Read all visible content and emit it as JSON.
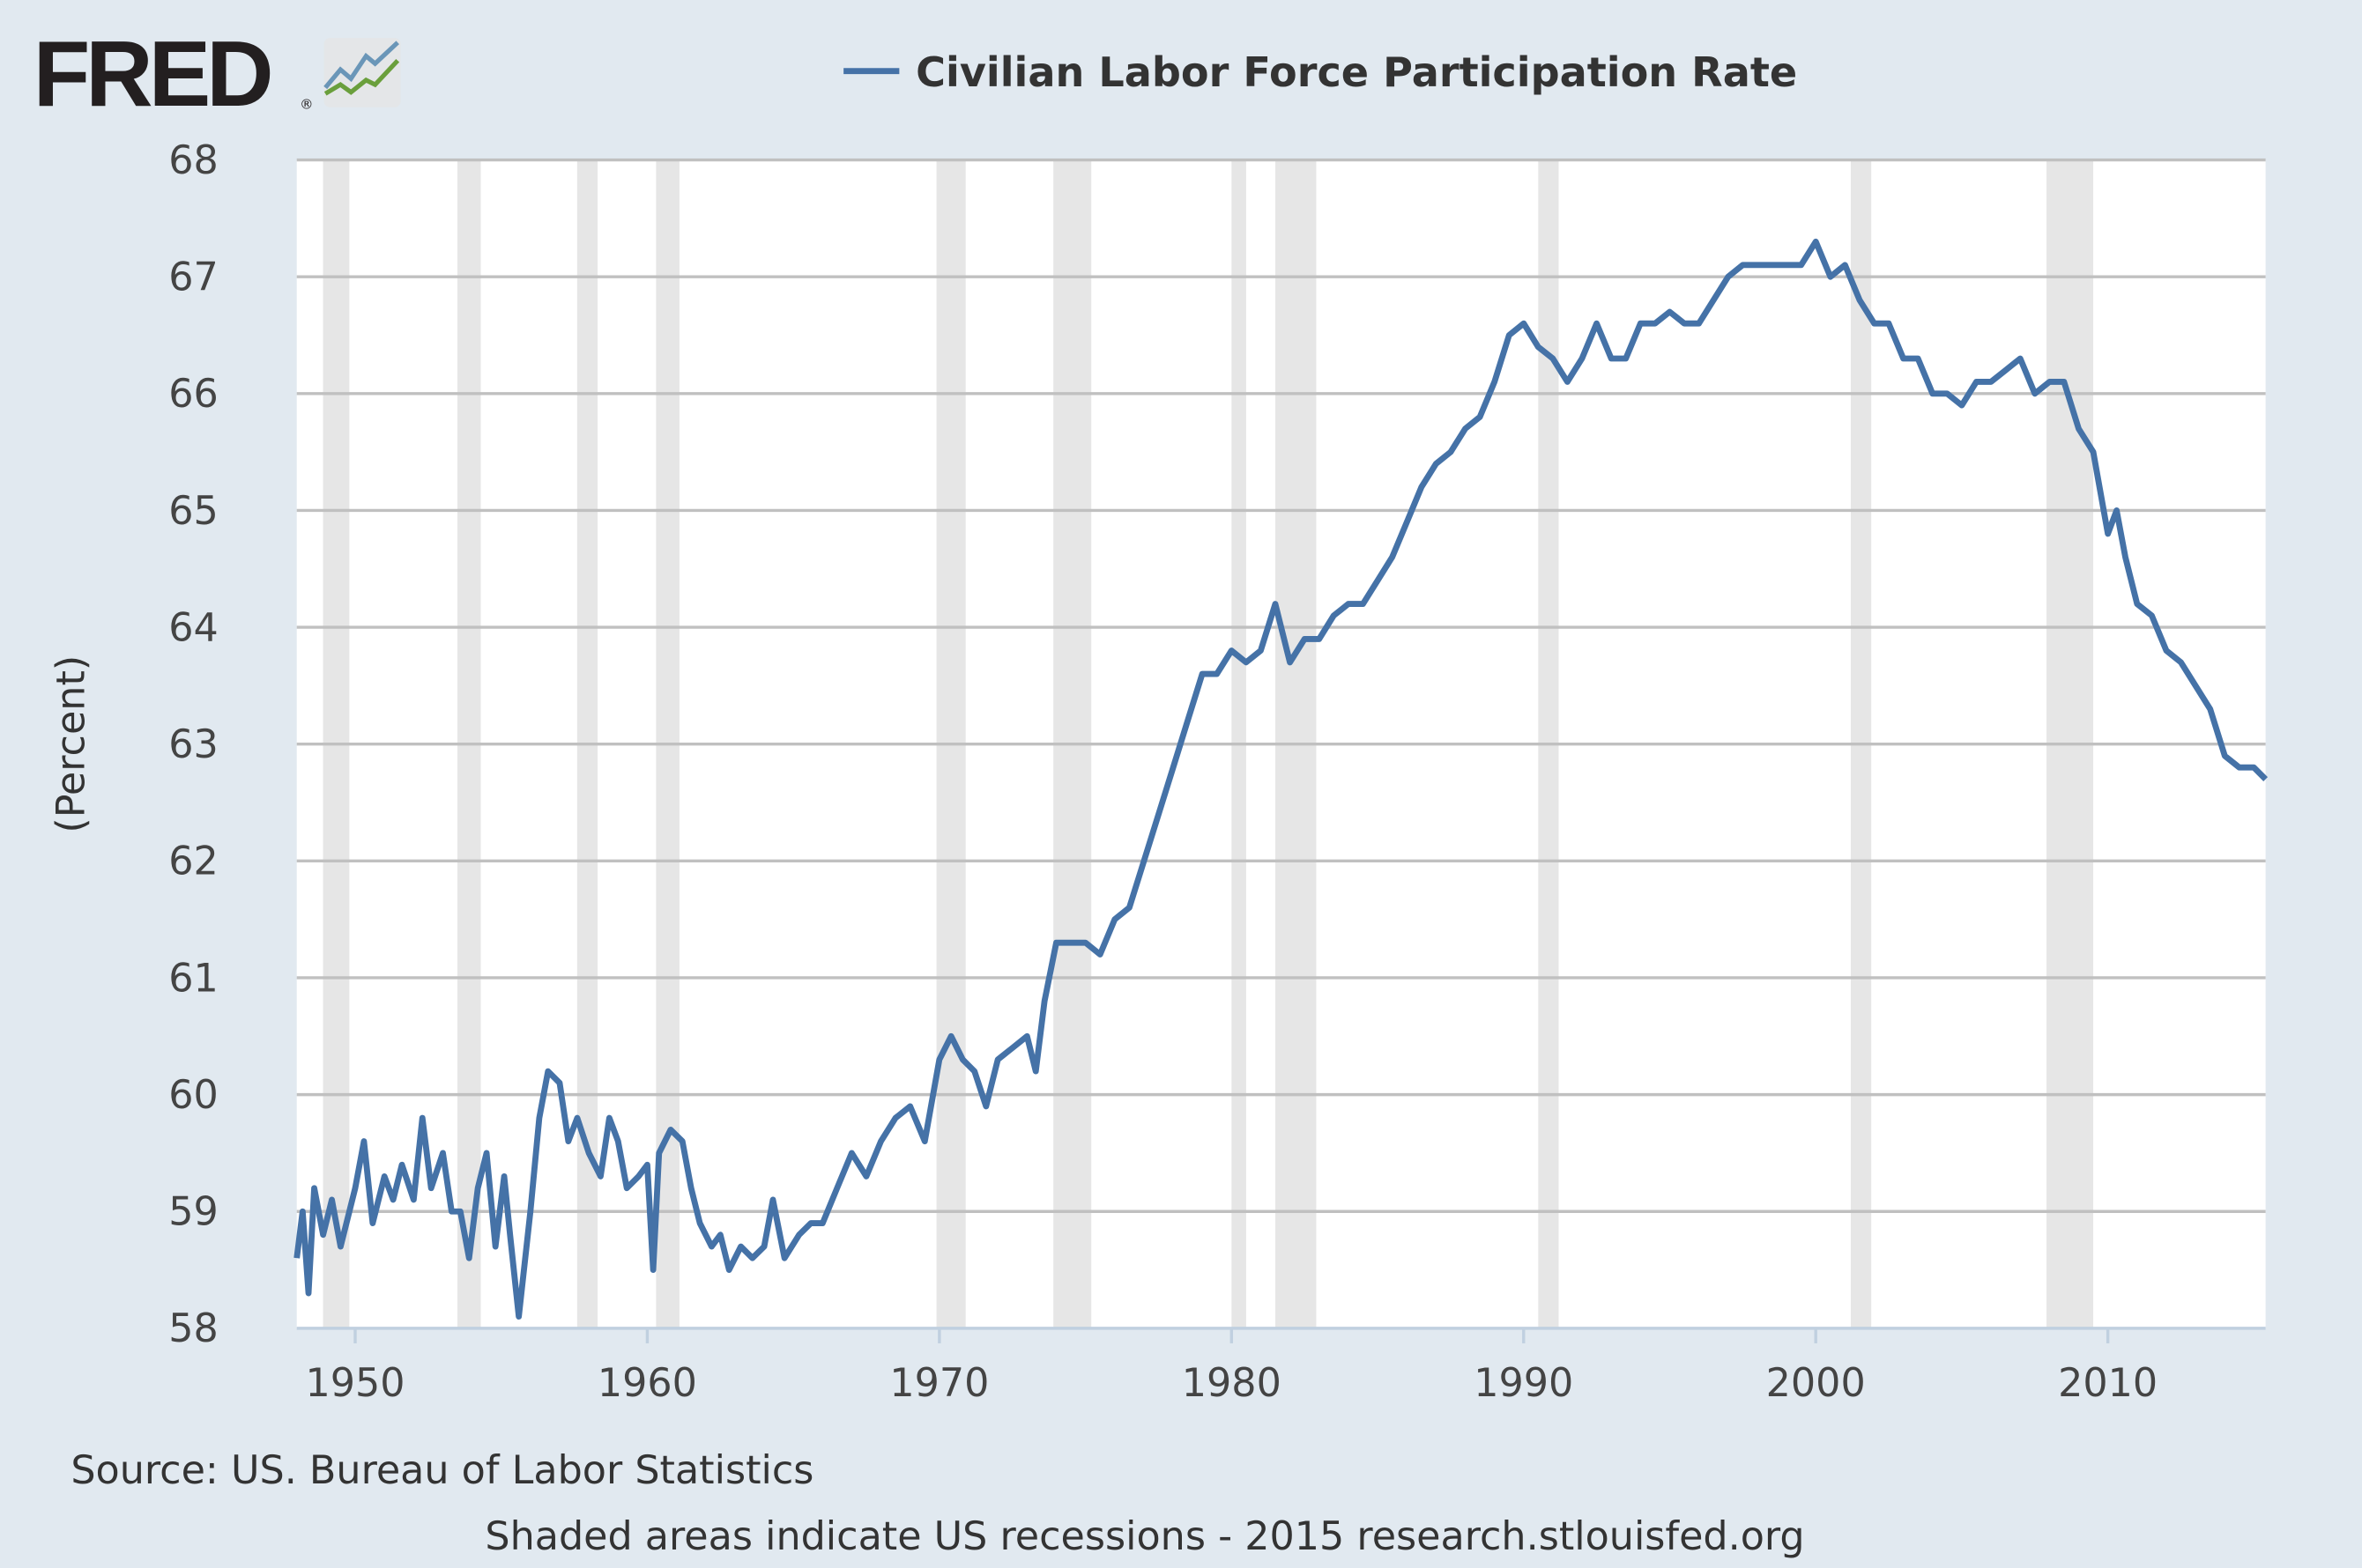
{
  "logo": {
    "text": "FRED",
    "registered": "®"
  },
  "colors": {
    "background": "#e1e9f0",
    "plot": "#ffffff",
    "series": "#4572a7",
    "grid": "#c0c0c0",
    "recession": "#e6e6e6",
    "axis": "#c0d0e0"
  },
  "chart_data": {
    "type": "line",
    "title": "Civilian Labor Force Participation Rate",
    "legend": [
      "Civilian Labor Force Participation Rate"
    ],
    "legend_position": "top-center",
    "xlabel": "",
    "ylabel": "(Percent)",
    "xlim": [
      1948.0,
      2015.4
    ],
    "ylim": [
      58,
      68
    ],
    "grid": true,
    "yticks": [
      "58",
      "59",
      "60",
      "61",
      "62",
      "63",
      "64",
      "65",
      "66",
      "67",
      "68"
    ],
    "xticks": [
      "1950",
      "1960",
      "1970",
      "1980",
      "1990",
      "2000",
      "2010"
    ],
    "recessions": [
      [
        1948.9,
        1949.8
      ],
      [
        1953.5,
        1954.3
      ],
      [
        1957.6,
        1958.3
      ],
      [
        1960.3,
        1961.1
      ],
      [
        1969.9,
        1970.9
      ],
      [
        1973.9,
        1975.2
      ],
      [
        1980.0,
        1980.5
      ],
      [
        1981.5,
        1982.9
      ],
      [
        1990.5,
        1991.2
      ],
      [
        2001.2,
        2001.9
      ],
      [
        2007.9,
        2009.5
      ]
    ],
    "series": [
      {
        "name": "Civilian Labor Force Participation Rate",
        "points": [
          [
            1948.0,
            58.6
          ],
          [
            1948.2,
            59.0
          ],
          [
            1948.4,
            58.3
          ],
          [
            1948.6,
            59.2
          ],
          [
            1948.9,
            58.8
          ],
          [
            1949.2,
            59.1
          ],
          [
            1949.5,
            58.7
          ],
          [
            1950.0,
            59.2
          ],
          [
            1950.3,
            59.6
          ],
          [
            1950.6,
            58.9
          ],
          [
            1951.0,
            59.3
          ],
          [
            1951.3,
            59.1
          ],
          [
            1951.6,
            59.4
          ],
          [
            1952.0,
            59.1
          ],
          [
            1952.3,
            59.8
          ],
          [
            1952.6,
            59.2
          ],
          [
            1953.0,
            59.5
          ],
          [
            1953.3,
            59.0
          ],
          [
            1953.6,
            59.0
          ],
          [
            1953.9,
            58.6
          ],
          [
            1954.2,
            59.2
          ],
          [
            1954.5,
            59.5
          ],
          [
            1954.8,
            58.7
          ],
          [
            1955.1,
            59.3
          ],
          [
            1955.3,
            58.8
          ],
          [
            1955.6,
            58.1
          ],
          [
            1956.0,
            59.0
          ],
          [
            1956.3,
            59.8
          ],
          [
            1956.6,
            60.2
          ],
          [
            1957.0,
            60.1
          ],
          [
            1957.3,
            59.6
          ],
          [
            1957.6,
            59.8
          ],
          [
            1958.0,
            59.5
          ],
          [
            1958.4,
            59.3
          ],
          [
            1958.7,
            59.8
          ],
          [
            1959.0,
            59.6
          ],
          [
            1959.3,
            59.2
          ],
          [
            1959.7,
            59.3
          ],
          [
            1960.0,
            59.4
          ],
          [
            1960.2,
            58.5
          ],
          [
            1960.4,
            59.5
          ],
          [
            1960.8,
            59.7
          ],
          [
            1961.2,
            59.6
          ],
          [
            1961.5,
            59.2
          ],
          [
            1961.8,
            58.9
          ],
          [
            1962.2,
            58.7
          ],
          [
            1962.5,
            58.8
          ],
          [
            1962.8,
            58.5
          ],
          [
            1963.2,
            58.7
          ],
          [
            1963.6,
            58.6
          ],
          [
            1964.0,
            58.7
          ],
          [
            1964.3,
            59.1
          ],
          [
            1964.7,
            58.6
          ],
          [
            1965.2,
            58.8
          ],
          [
            1965.6,
            58.9
          ],
          [
            1966.0,
            58.9
          ],
          [
            1966.5,
            59.2
          ],
          [
            1967.0,
            59.5
          ],
          [
            1967.5,
            59.3
          ],
          [
            1968.0,
            59.6
          ],
          [
            1968.5,
            59.8
          ],
          [
            1969.0,
            59.9
          ],
          [
            1969.5,
            59.6
          ],
          [
            1970.0,
            60.3
          ],
          [
            1970.4,
            60.5
          ],
          [
            1970.8,
            60.3
          ],
          [
            1971.2,
            60.2
          ],
          [
            1971.6,
            59.9
          ],
          [
            1972.0,
            60.3
          ],
          [
            1972.5,
            60.4
          ],
          [
            1973.0,
            60.5
          ],
          [
            1973.3,
            60.2
          ],
          [
            1973.6,
            60.8
          ],
          [
            1974.0,
            61.3
          ],
          [
            1974.5,
            61.3
          ],
          [
            1975.0,
            61.3
          ],
          [
            1975.5,
            61.2
          ],
          [
            1976.0,
            61.5
          ],
          [
            1976.5,
            61.6
          ],
          [
            1977.0,
            62.0
          ],
          [
            1977.5,
            62.4
          ],
          [
            1978.0,
            62.8
          ],
          [
            1978.5,
            63.2
          ],
          [
            1979.0,
            63.6
          ],
          [
            1979.5,
            63.6
          ],
          [
            1980.0,
            63.8
          ],
          [
            1980.5,
            63.7
          ],
          [
            1981.0,
            63.8
          ],
          [
            1981.5,
            64.2
          ],
          [
            1982.0,
            63.7
          ],
          [
            1982.5,
            63.9
          ],
          [
            1983.0,
            63.9
          ],
          [
            1983.5,
            64.1
          ],
          [
            1984.0,
            64.2
          ],
          [
            1984.5,
            64.2
          ],
          [
            1985.0,
            64.4
          ],
          [
            1985.5,
            64.6
          ],
          [
            1986.0,
            64.9
          ],
          [
            1986.5,
            65.2
          ],
          [
            1987.0,
            65.4
          ],
          [
            1987.5,
            65.5
          ],
          [
            1988.0,
            65.7
          ],
          [
            1988.5,
            65.8
          ],
          [
            1989.0,
            66.1
          ],
          [
            1989.5,
            66.5
          ],
          [
            1990.0,
            66.6
          ],
          [
            1990.5,
            66.4
          ],
          [
            1991.0,
            66.3
          ],
          [
            1991.5,
            66.1
          ],
          [
            1992.0,
            66.3
          ],
          [
            1992.5,
            66.6
          ],
          [
            1993.0,
            66.3
          ],
          [
            1993.5,
            66.3
          ],
          [
            1994.0,
            66.6
          ],
          [
            1994.5,
            66.6
          ],
          [
            1995.0,
            66.7
          ],
          [
            1995.5,
            66.6
          ],
          [
            1996.0,
            66.6
          ],
          [
            1996.5,
            66.8
          ],
          [
            1997.0,
            67.0
          ],
          [
            1997.5,
            67.1
          ],
          [
            1998.0,
            67.1
          ],
          [
            1998.5,
            67.1
          ],
          [
            1999.0,
            67.1
          ],
          [
            1999.5,
            67.1
          ],
          [
            2000.0,
            67.3
          ],
          [
            2000.5,
            67.0
          ],
          [
            2001.0,
            67.1
          ],
          [
            2001.5,
            66.8
          ],
          [
            2002.0,
            66.6
          ],
          [
            2002.5,
            66.6
          ],
          [
            2003.0,
            66.3
          ],
          [
            2003.5,
            66.3
          ],
          [
            2004.0,
            66.0
          ],
          [
            2004.5,
            66.0
          ],
          [
            2005.0,
            65.9
          ],
          [
            2005.5,
            66.1
          ],
          [
            2006.0,
            66.1
          ],
          [
            2006.5,
            66.2
          ],
          [
            2007.0,
            66.3
          ],
          [
            2007.5,
            66.0
          ],
          [
            2008.0,
            66.1
          ],
          [
            2008.5,
            66.1
          ],
          [
            2009.0,
            65.7
          ],
          [
            2009.5,
            65.5
          ],
          [
            2010.0,
            64.8
          ],
          [
            2010.3,
            65.0
          ],
          [
            2010.6,
            64.6
          ],
          [
            2011.0,
            64.2
          ],
          [
            2011.5,
            64.1
          ],
          [
            2012.0,
            63.8
          ],
          [
            2012.5,
            63.7
          ],
          [
            2013.0,
            63.5
          ],
          [
            2013.5,
            63.3
          ],
          [
            2014.0,
            62.9
          ],
          [
            2014.5,
            62.8
          ],
          [
            2015.0,
            62.8
          ],
          [
            2015.4,
            62.7
          ]
        ]
      }
    ]
  },
  "footer": {
    "source": "Source: US. Bureau of Labor Statistics",
    "note": "Shaded areas indicate US recessions - 2015 research.stlouisfed.org"
  }
}
